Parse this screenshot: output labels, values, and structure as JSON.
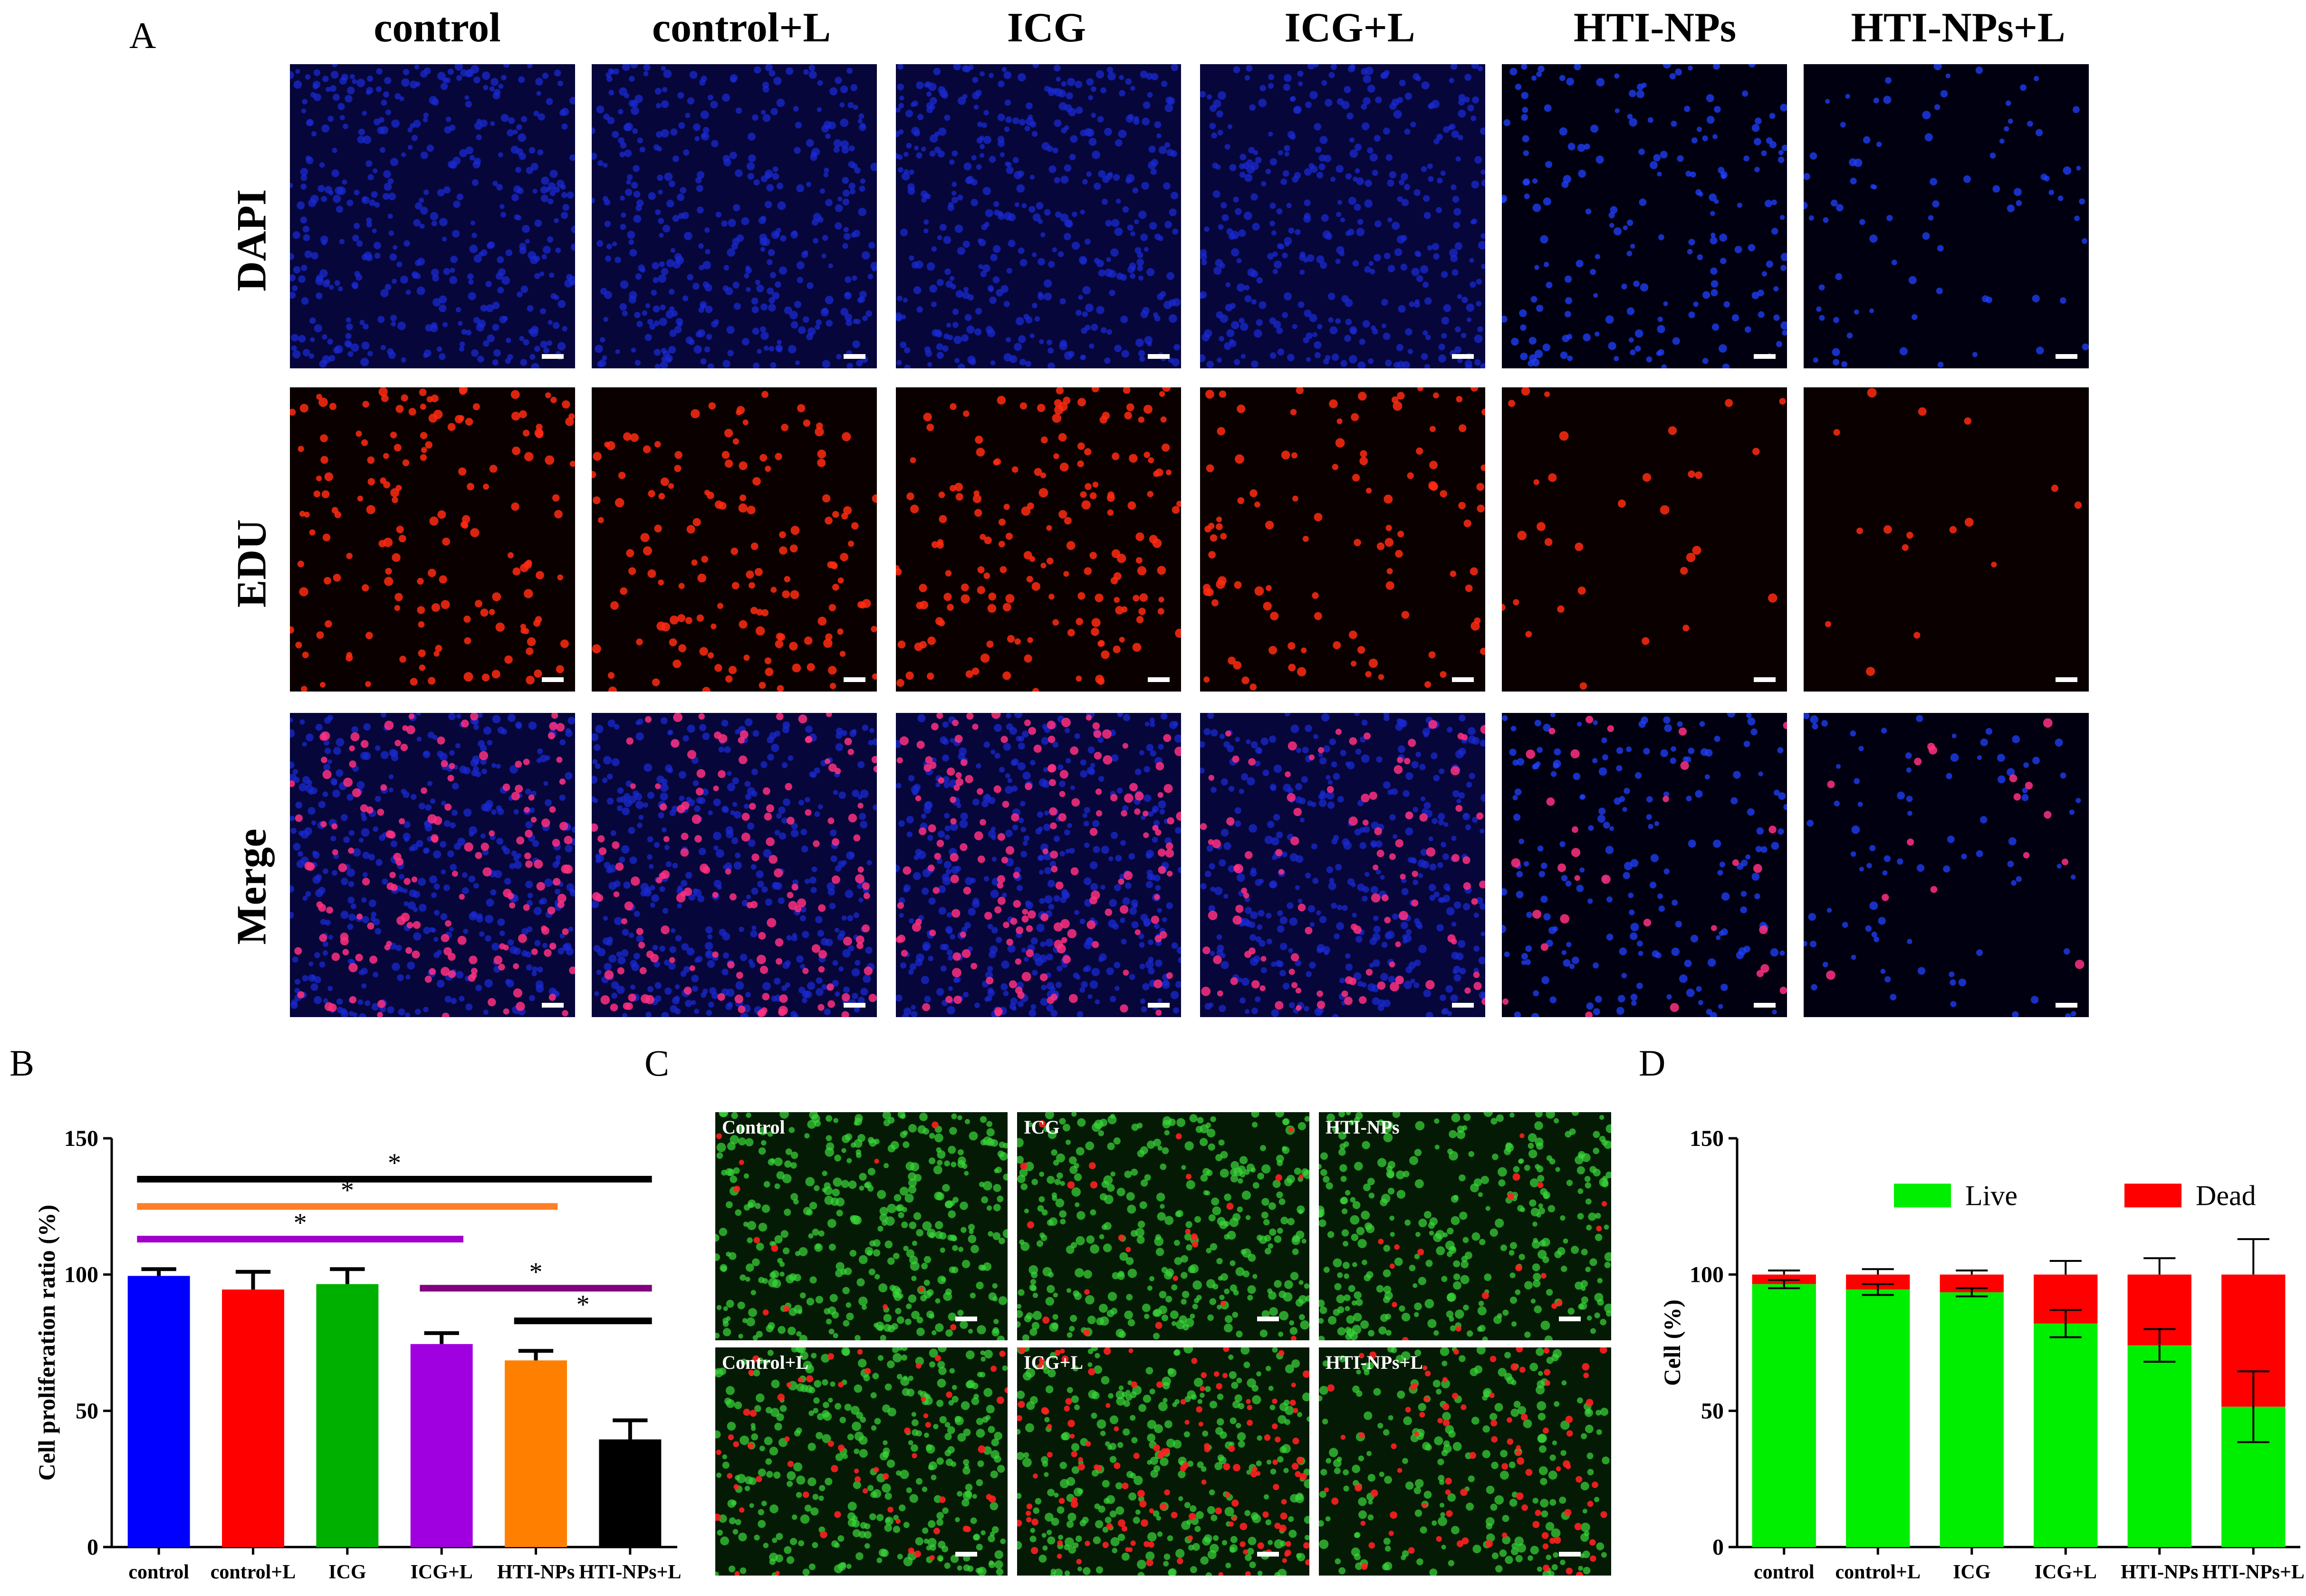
{
  "panel_letters": {
    "a": "A",
    "b": "B",
    "c": "C",
    "d": "D"
  },
  "panel_a": {
    "columns": [
      "control",
      "control+L",
      "ICG",
      "ICG+L",
      "HTI-NPs",
      "HTI-NPs+L"
    ],
    "rows": [
      "DAPI",
      "EDU",
      "Merge"
    ]
  },
  "panel_c": {
    "labels": [
      "Control",
      "ICG",
      "HTI-NPs",
      "Control+L",
      "ICG+L",
      "HTI-NPs+L"
    ]
  },
  "chart_data": [
    {
      "id": "B",
      "type": "bar",
      "ylabel": "Cell proliferation ratio (%)",
      "xlabel": "",
      "ylim": [
        0,
        150
      ],
      "yticks": [
        0,
        50,
        100,
        150
      ],
      "categories": [
        "control",
        "control+L",
        "ICG",
        "ICG+L",
        "HTI-NPs",
        "HTI-NPs+L"
      ],
      "values": [
        99.5,
        94.5,
        96.5,
        74.5,
        68.5,
        39.5
      ],
      "errors": [
        2.5,
        6.5,
        5.5,
        4,
        3.5,
        7
      ],
      "colors": [
        "#0000ff",
        "#ff0000",
        "#00b000",
        "#a000e0",
        "#ff8000",
        "#000000"
      ],
      "significance": [
        {
          "from": 0,
          "to": 5,
          "y": 135,
          "color": "#000000",
          "label": "*"
        },
        {
          "from": 0,
          "to": 4,
          "y": 125,
          "color": "#ff7f27",
          "label": "*"
        },
        {
          "from": 0,
          "to": 3,
          "y": 113,
          "color": "#a000c8",
          "label": "*"
        },
        {
          "from": 3,
          "to": 5,
          "y": 95,
          "color": "#800080",
          "label": "*"
        },
        {
          "from": 4,
          "to": 5,
          "y": 83,
          "color": "#000000",
          "label": "*"
        }
      ]
    },
    {
      "id": "D",
      "type": "bar",
      "stacked": true,
      "ylabel": "Cell (%)",
      "xlabel": "",
      "ylim": [
        0,
        150
      ],
      "yticks": [
        0,
        50,
        100,
        150
      ],
      "categories": [
        "control",
        "control+L",
        "ICG",
        "ICG+L",
        "HTI-NPs",
        "HTI-NPs+L"
      ],
      "legend_position": "top",
      "series": [
        {
          "name": "Live",
          "color": "#00ee00",
          "values": [
            96.5,
            94.5,
            93.5,
            82,
            74,
            51.5
          ],
          "errors": [
            1.5,
            2,
            1.5,
            5,
            6,
            13
          ]
        },
        {
          "name": "Dead",
          "color": "#ff0000",
          "values": [
            3.5,
            5.5,
            6.5,
            18,
            26,
            48.5
          ],
          "errors": [
            1.5,
            2,
            1.5,
            5,
            6,
            13
          ]
        }
      ]
    }
  ]
}
